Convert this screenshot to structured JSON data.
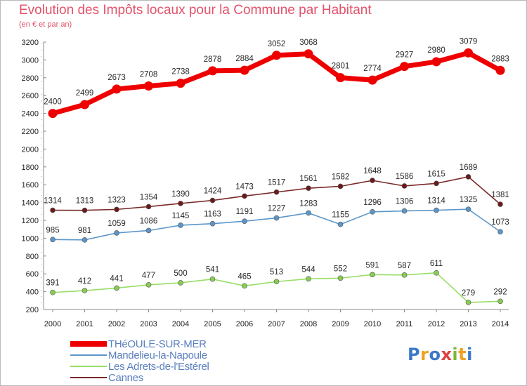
{
  "title": "Evolution des Impôts locaux pour la Commune par Habitant",
  "subtitle": "(en € et par an)",
  "logo": {
    "letters": [
      "P",
      "r",
      "o",
      "x",
      "i",
      "t",
      "i"
    ],
    "colors": [
      "#3c78c8",
      "#f0a020",
      "#3c78c8",
      "#e04040",
      "#7ab83c",
      "#f0a020",
      "#3c78c8"
    ]
  },
  "chart_data": {
    "type": "line",
    "x": [
      "2000",
      "2001",
      "2002",
      "2003",
      "2004",
      "2005",
      "2006",
      "2007",
      "2008",
      "2009",
      "2010",
      "2011",
      "2012",
      "2013",
      "2014"
    ],
    "ylim": [
      200,
      3200
    ],
    "yticks": [
      200,
      400,
      600,
      800,
      1000,
      1200,
      1400,
      1600,
      1800,
      2000,
      2200,
      2400,
      2600,
      2800,
      3000,
      3200
    ],
    "grid": false,
    "legend_position": "bottom-left",
    "series": [
      {
        "name": "THéOULE-SUR-MER",
        "color": "#ee0000",
        "marker_color": "#ee0000",
        "values": [
          2400,
          2499,
          2673,
          2708,
          2738,
          2878,
          2884,
          3052,
          3068,
          2801,
          2774,
          2927,
          2980,
          3079,
          2883
        ]
      },
      {
        "name": "Mandelieu-la-Napoule",
        "color": "#5c96c8",
        "marker_color": "#5c96c8",
        "values": [
          985,
          981,
          1059,
          1086,
          1145,
          1163,
          1191,
          1227,
          1283,
          1155,
          1296,
          1306,
          1314,
          1325,
          1073
        ]
      },
      {
        "name": "Les Adrets-de-l'Estérel",
        "color": "#99dd66",
        "marker_color": "#88cc55",
        "values": [
          391,
          412,
          441,
          477,
          500,
          541,
          465,
          513,
          544,
          552,
          591,
          587,
          611,
          279,
          292
        ]
      },
      {
        "name": "Cannes",
        "color": "#7a2a2a",
        "marker_color": "#6a1a1a",
        "values": [
          1314,
          1313,
          1323,
          1354,
          1390,
          1424,
          1473,
          1517,
          1561,
          1582,
          1648,
          1586,
          1615,
          1689,
          1381
        ]
      }
    ]
  }
}
